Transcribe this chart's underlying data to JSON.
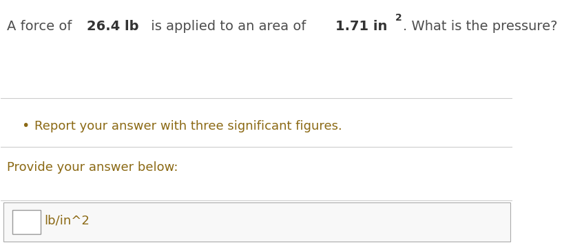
{
  "background_color": "#ffffff",
  "title_parts": [
    {
      "text": "A force of ",
      "bold": false,
      "color": "#4d4d4d",
      "size": 15
    },
    {
      "text": "26.4 lb",
      "bold": true,
      "color": "#4d4d4d",
      "size": 15
    },
    {
      "text": " is applied to an area of ",
      "bold": false,
      "color": "#4d4d4d",
      "size": 15
    },
    {
      "text": "1.71 in",
      "bold": true,
      "color": "#4d4d4d",
      "size": 15
    },
    {
      "text": "2",
      "bold": true,
      "color": "#4d4d4d",
      "size": 10,
      "superscript": true
    },
    {
      "text": ". What is the pressure?",
      "bold": false,
      "color": "#4d4d4d",
      "size": 15
    }
  ],
  "bullet_text": "Report your answer with three significant figures.",
  "bullet_color": "#8b6914",
  "provide_text": "Provide your answer below:",
  "provide_color": "#8b6914",
  "unit_text": "lb/in^2",
  "unit_color": "#8b6914",
  "line_color": "#cccccc",
  "box_color": "#f5f5f5",
  "box_border_color": "#aaaaaa",
  "font_size_main": 15,
  "font_size_bullet": 14,
  "font_size_provide": 14,
  "font_size_unit": 13
}
